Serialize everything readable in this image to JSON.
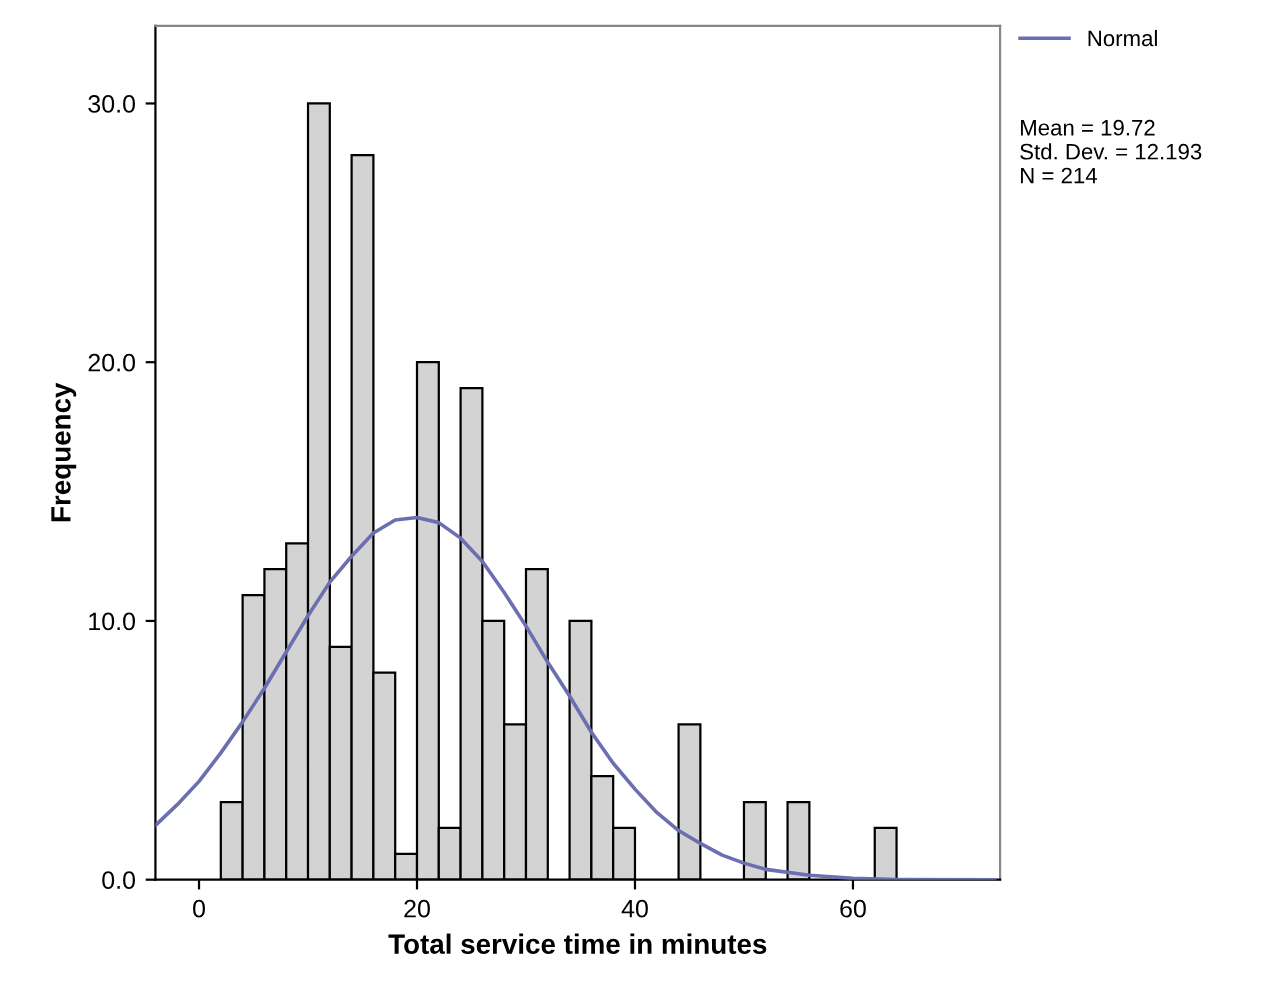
{
  "chart_data": {
    "type": "histogram",
    "xlabel": "Total service time in minutes",
    "ylabel": "Frequency",
    "bins": [
      2,
      4,
      6,
      8,
      10,
      12,
      14,
      16,
      18,
      20,
      22,
      24,
      26,
      28,
      30,
      32,
      34,
      36,
      38,
      40,
      42,
      44,
      46,
      48,
      50,
      52,
      54,
      56,
      58,
      60,
      62,
      64
    ],
    "values": [
      3,
      11,
      12,
      13,
      30,
      9,
      28,
      8,
      1,
      20,
      2,
      19,
      10,
      6,
      12,
      0,
      10,
      4,
      2,
      0,
      0,
      6,
      0,
      0,
      3,
      0,
      3,
      0,
      0,
      0,
      2
    ],
    "color": "#d3d3d3",
    "series": [
      {
        "name": "Normal",
        "type": "line",
        "color": "#6b6fb0",
        "x": [
          -4,
          -2,
          0,
          2,
          4,
          6,
          8,
          10,
          12,
          14,
          16,
          18,
          20,
          22,
          24,
          26,
          28,
          30,
          32,
          34,
          36,
          38,
          40,
          42,
          44,
          46,
          48,
          50,
          52,
          56,
          60,
          64,
          73
        ],
        "values": [
          2.1,
          2.9,
          3.8,
          4.9,
          6.1,
          7.4,
          8.8,
          10.2,
          11.5,
          12.5,
          13.4,
          13.9,
          14.0,
          13.8,
          13.2,
          12.3,
          11.1,
          9.8,
          8.4,
          7.1,
          5.7,
          4.5,
          3.5,
          2.6,
          1.9,
          1.4,
          0.95,
          0.64,
          0.4,
          0.17,
          0.05,
          0.01,
          0
        ]
      }
    ],
    "xlim": [
      -4,
      73.5
    ],
    "ylim": [
      0,
      33
    ],
    "xticks": [
      0,
      20,
      40,
      60
    ],
    "yticks": [
      {
        "value": 0,
        "label": "0.0"
      },
      {
        "value": 10,
        "label": "10.0"
      },
      {
        "value": 20,
        "label": "20.0"
      },
      {
        "value": 30,
        "label": "30.0"
      }
    ],
    "legend": "top right",
    "annotations": [
      "Mean = 19.72\nStd. Dev. = 12.193\nN = 214"
    ]
  }
}
